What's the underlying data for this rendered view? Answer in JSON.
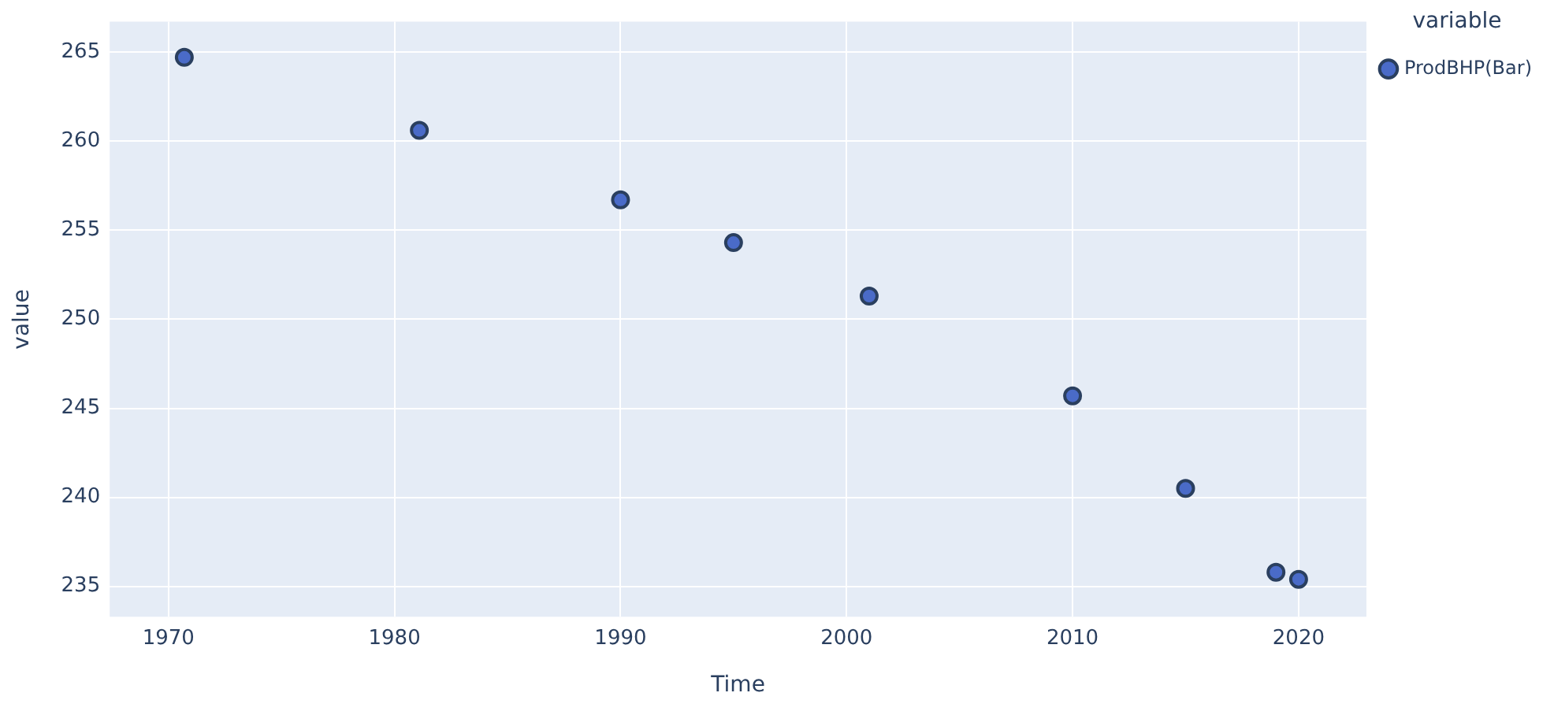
{
  "chart_data": {
    "type": "scatter",
    "xlabel": "Time",
    "ylabel": "value",
    "legend_title": "variable",
    "x": [
      1970.7,
      1981.1,
      1990.0,
      1995.0,
      2001.0,
      2010.0,
      2015.0,
      2019.0,
      2020.0
    ],
    "series": [
      {
        "name": "ProdBHP(Bar)",
        "color": "#4a6bc8",
        "values": [
          264.7,
          260.6,
          256.7,
          254.3,
          251.3,
          245.7,
          240.5,
          235.8,
          235.4
        ]
      }
    ],
    "xlim": [
      1967.4,
      2023.0
    ],
    "xticks": [
      1970,
      1980,
      1990,
      2000,
      2010,
      2020
    ],
    "ylim": [
      233.3,
      266.7
    ],
    "yticks": [
      235,
      240,
      245,
      250,
      255,
      260,
      265
    ],
    "grid": true,
    "legend": "top right",
    "marker": "circle"
  }
}
